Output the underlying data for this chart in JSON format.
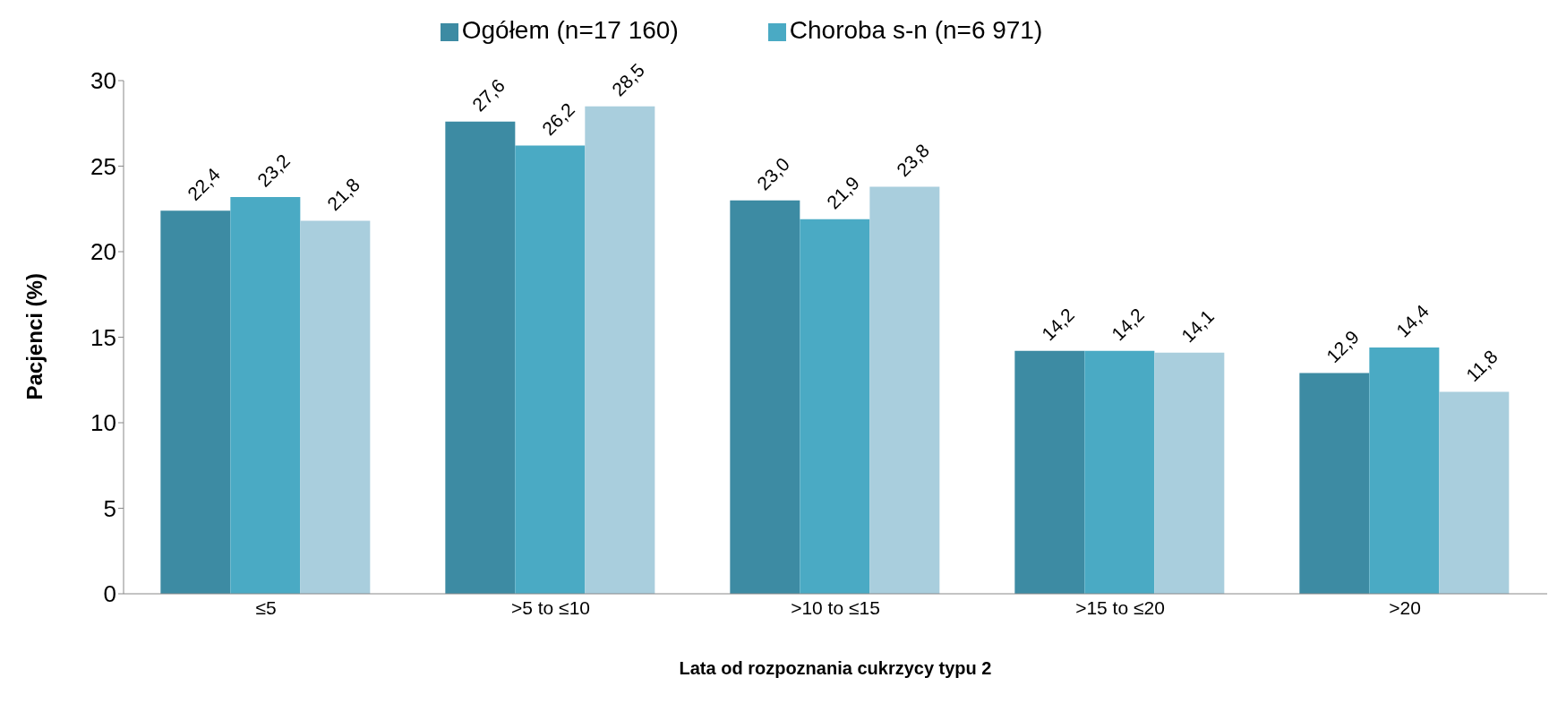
{
  "chart_data": {
    "type": "bar",
    "xlabel": "Lata od rozpoznania cukrzycy typu 2",
    "ylabel": "Pacjenci (%)",
    "categories": [
      "≤5",
      ">5 to ≤10",
      ">10 to ≤15",
      ">15 to ≤20",
      ">20"
    ],
    "series": [
      {
        "name": "Ogółem (n=17 160)",
        "color": "#3d8ba3",
        "values": [
          22.4,
          27.6,
          23.0,
          14.2,
          12.9
        ],
        "value_labels": [
          "22,4",
          "27,6",
          "23,0",
          "14,2",
          "12,9"
        ]
      },
      {
        "name": "Choroba s-n (n=6 971)",
        "color": "#4aaac4",
        "values": [
          23.2,
          26.2,
          21.9,
          14.2,
          14.4
        ],
        "value_labels": [
          "23,2",
          "26,2",
          "21,9",
          "14,2",
          "14,4"
        ]
      },
      {
        "color": "#a9cedd",
        "values": [
          21.8,
          28.5,
          23.8,
          14.1,
          11.8
        ],
        "value_labels": [
          "21,8",
          "28,5",
          "23,8",
          "14,1",
          "11,8"
        ]
      }
    ],
    "ylim": [
      0,
      30
    ],
    "yticks": [
      0,
      5,
      10,
      15,
      20,
      25,
      30
    ],
    "grid": false,
    "legend": "top"
  }
}
